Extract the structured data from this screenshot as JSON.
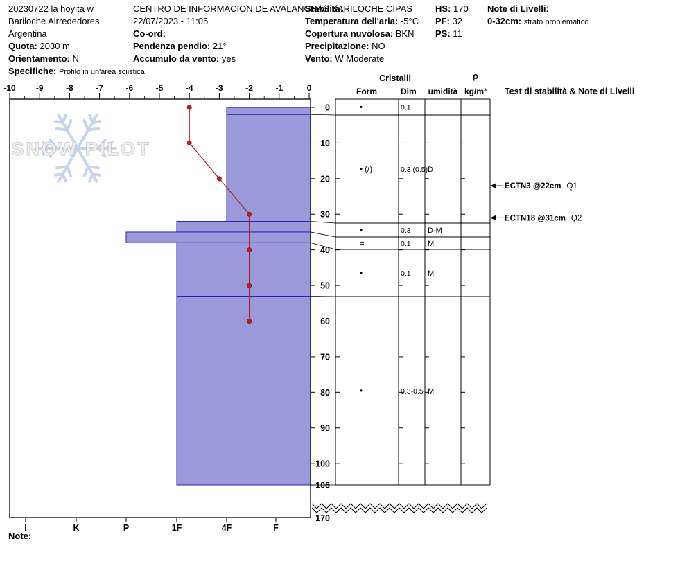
{
  "header": {
    "col1": {
      "title": "20230722 la hoyita w",
      "location": "Bariloche Alrrededores",
      "country": "Argentina",
      "quota_label": "Quota:",
      "quota_value": "2030 m",
      "orientamento_label": "Orientamento:",
      "orientamento_value": "N",
      "specifiche_label": "Specifiche:",
      "specifiche_value": "Profilo in un'area sciistica"
    },
    "col2": {
      "org": "CENTRO DE INFORMACION DE AVALANCHAS BARILOCHE CIPAS",
      "datetime": "22/07/2023 - 11:05",
      "coord_label": "Co-ord:",
      "pendenza_label": "Pendenza pendio:",
      "pendenza_value": "21°",
      "accumulo_label": "Accumulo da vento:",
      "accumulo_value": "yes"
    },
    "col3": {
      "stabilita_label": "Stabilità:",
      "temp_label": "Temperatura dell'aria:",
      "temp_value": "-5°C",
      "copertura_label": "Copertura nuvolosa:",
      "copertura_value": "BKN",
      "precipitazione_label": "Precipitazione:",
      "precipitazione_value": "NO",
      "vento_label": "Vento:",
      "vento_value": "W Moderate"
    },
    "col4": {
      "hs_label": "HS:",
      "hs_value": "170",
      "pf_label": "PF:",
      "pf_value": "32",
      "ps_label": "PS:",
      "ps_value": "11"
    },
    "col5": {
      "note_livelli_label": "Note di Livelli:",
      "note_range": "0-32cm:",
      "note_text": "strato problematico"
    }
  },
  "watermark": {
    "text": "SNOW PILOT",
    "icon": "snowflake-icon"
  },
  "footer": {
    "note_label": "Note:"
  },
  "chart_data": {
    "type": "snow-profile",
    "temperature_axis": {
      "position": "top",
      "ticks": [
        -10,
        -9,
        -8,
        -7,
        -6,
        -5,
        -4,
        -3,
        -2,
        -1,
        0
      ]
    },
    "depth_axis": {
      "ticks": [
        0,
        10,
        20,
        30,
        40,
        50,
        60,
        70,
        80,
        90,
        100,
        106
      ],
      "break_label": "170",
      "pit_depth_cm": 106,
      "total_height_cm": 170
    },
    "hardness_axis": {
      "categories": [
        "I",
        "K",
        "P",
        "1F",
        "4F",
        "F"
      ]
    },
    "temperature_profile": [
      {
        "depth_cm": 0,
        "temp_c": -4
      },
      {
        "depth_cm": 10,
        "temp_c": -4
      },
      {
        "depth_cm": 20,
        "temp_c": -3
      },
      {
        "depth_cm": 30,
        "temp_c": -2
      },
      {
        "depth_cm": 40,
        "temp_c": -2
      },
      {
        "depth_cm": 50,
        "temp_c": -2
      },
      {
        "depth_cm": 60,
        "temp_c": -2
      }
    ],
    "layers": [
      {
        "top_cm": 0,
        "bottom_cm": 2,
        "hardness": "4F",
        "form": "•",
        "dim_mm": "0.1",
        "umidita": ""
      },
      {
        "top_cm": 2,
        "bottom_cm": 32,
        "hardness": "4F",
        "form": "• (/)",
        "dim_mm": "0.3 (0.5)",
        "umidita": "D"
      },
      {
        "top_cm": 32,
        "bottom_cm": 35,
        "hardness": "1F",
        "form": "•",
        "dim_mm": "0.3",
        "umidita": "D-M"
      },
      {
        "top_cm": 35,
        "bottom_cm": 38,
        "hardness": "P",
        "form": "=",
        "dim_mm": "0.1",
        "umidita": "M"
      },
      {
        "top_cm": 38,
        "bottom_cm": 53,
        "hardness": "1F",
        "form": "•",
        "dim_mm": "0.1",
        "umidita": "M"
      },
      {
        "top_cm": 53,
        "bottom_cm": 106,
        "hardness": "1F",
        "form": "•",
        "dim_mm": "0.3-0.5",
        "umidita": "M"
      }
    ],
    "stability_tests": [
      {
        "label": "ECTN3 @22cm",
        "quality": "Q1",
        "depth_cm": 22
      },
      {
        "label": "ECTN18 @31cm",
        "quality": "Q2",
        "depth_cm": 31
      }
    ],
    "table_headers": {
      "cristalli": "Cristalli",
      "form": "Form",
      "dim": "Dim",
      "umidita": "umidità",
      "rho": "ρ",
      "rho_unit": "kg/m³",
      "tests": "Test di stabilità & Note di Livelli"
    },
    "colors": {
      "layer_fill": "#9a9ada",
      "layer_stroke": "#2323bb",
      "temperature": "#b91414"
    }
  }
}
